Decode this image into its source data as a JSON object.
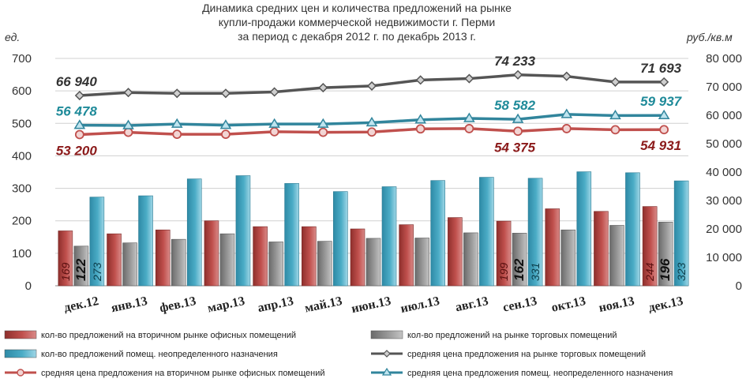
{
  "chart_data": {
    "type": "bar",
    "title_lines": [
      "Динамика средних цен и количества предложений на рынке",
      "купли-продажи коммерческой недвижимости г. Перми",
      "за период с декабря 2012 г. по декабрь 2013 г."
    ],
    "left_unit": "ед.",
    "right_unit": "руб./кв.м",
    "left_axis": {
      "min": 0,
      "max": 700,
      "step": 100,
      "ticks": [
        "0",
        "100",
        "200",
        "300",
        "400",
        "500",
        "600",
        "700"
      ]
    },
    "right_axis": {
      "min": 0,
      "max": 80000,
      "step": 10000,
      "ticks": [
        "0",
        "10 000",
        "20 000",
        "30 000",
        "40 000",
        "50 000",
        "60 000",
        "70 000",
        "80 000"
      ]
    },
    "categories": [
      "дек.12",
      "янв.13",
      "фев.13",
      "мар.13",
      "апр.13",
      "май.13",
      "июн.13",
      "июл.13",
      "авг.13",
      "сен.13",
      "окт.13",
      "ноя.13",
      "дек.13"
    ],
    "bar_series": [
      {
        "name": "кол-во предложений на вторичном рынке офисных помещений",
        "color": "#c0504d",
        "values": [
          169,
          160,
          172,
          200,
          182,
          182,
          175,
          188,
          210,
          199,
          237,
          229,
          244
        ]
      },
      {
        "name": "кол-во предложений на рынке торговых помещений",
        "color": "#8c8c8c",
        "values": [
          122,
          132,
          143,
          160,
          135,
          137,
          146,
          147,
          163,
          162,
          172,
          186,
          196
        ]
      },
      {
        "name": "кол-во предложений помещ. неопределенного назначения",
        "color": "#4bacc6",
        "values": [
          273,
          277,
          329,
          339,
          315,
          290,
          305,
          324,
          334,
          331,
          351,
          348,
          323
        ]
      }
    ],
    "line_series": [
      {
        "name": "средняя цена предложения на рынке торговых помещений",
        "color": "#555555",
        "marker": "diamond",
        "values": [
          66940,
          68000,
          67700,
          67700,
          68200,
          69700,
          70300,
          72400,
          72900,
          74233,
          73700,
          71700,
          71693
        ]
      },
      {
        "name": "средняя цена предложения на вторичном рынке офисных помещений",
        "color": "#c0504d",
        "marker": "circle",
        "values": [
          53200,
          54000,
          53300,
          53300,
          54200,
          54000,
          54100,
          55200,
          55300,
          54375,
          55300,
          54900,
          54931
        ]
      },
      {
        "name": "средняя цена предложения помещ. неопределенного назначения",
        "color": "#31859c",
        "marker": "triangle",
        "values": [
          56478,
          56400,
          56900,
          56500,
          56900,
          56900,
          57400,
          58400,
          58900,
          58582,
          60300,
          59900,
          59937
        ]
      }
    ],
    "bar_labels": [
      {
        "category": "дек.12",
        "values": [
          "169",
          "122",
          "273"
        ]
      },
      {
        "category": "сен.13",
        "values": [
          "199",
          "162",
          "331"
        ]
      },
      {
        "category": "дек.13",
        "values": [
          "244",
          "196",
          "323"
        ]
      }
    ],
    "line_labels": [
      {
        "series": "трг",
        "category": "дек.12",
        "text": "66 940"
      },
      {
        "series": "трг",
        "category": "сен.13",
        "text": "74 233"
      },
      {
        "series": "трг",
        "category": "дек.13",
        "text": "71 693"
      },
      {
        "series": "неопр",
        "category": "дек.12",
        "text": "56 478"
      },
      {
        "series": "неопр",
        "category": "сен.13",
        "text": "58 582"
      },
      {
        "series": "неопр",
        "category": "дек.13",
        "text": "59 937"
      },
      {
        "series": "офис",
        "category": "дек.12",
        "text": "53 200"
      },
      {
        "series": "офис",
        "category": "сен.13",
        "text": "54 375"
      },
      {
        "series": "офис",
        "category": "дек.13",
        "text": "54 931"
      }
    ],
    "legend": [
      {
        "text": "кол-во предложений на вторичном рынке офисных помещений",
        "kind": "bar",
        "color": "#c0504d"
      },
      {
        "text": "кол-во предложений на рынке торговых помещений",
        "kind": "bar",
        "color": "#8c8c8c"
      },
      {
        "text": "кол-во предложений помещ. неопределенного назначения",
        "kind": "bar",
        "color": "#4bacc6"
      },
      {
        "text": "средняя цена предложения на рынке торговых помещений",
        "kind": "line-diamond",
        "color": "#555555"
      },
      {
        "text": "средняя цена предложения на вторичном рынке офисных помещений",
        "kind": "line-circle",
        "color": "#c0504d"
      },
      {
        "text": "средняя цена предложения помещ. неопределенного назначения",
        "kind": "line-triangle",
        "color": "#31859c"
      }
    ],
    "grid": "horizontal",
    "legend_position": "bottom"
  }
}
